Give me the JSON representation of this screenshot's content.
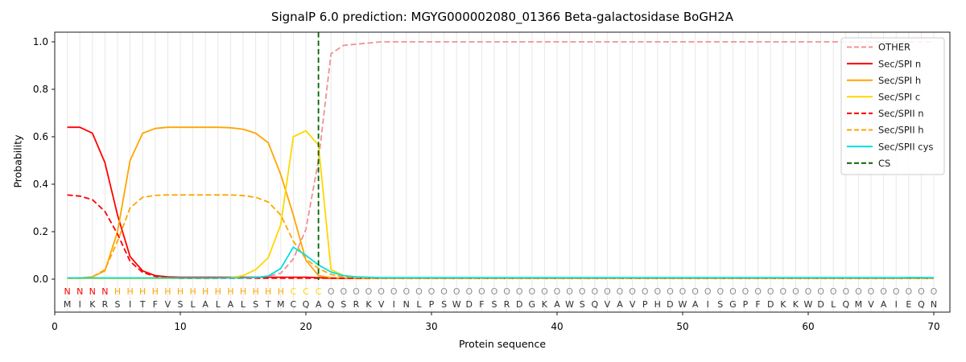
{
  "chart_data": {
    "type": "line",
    "title": "SignalP 6.0 prediction: MGYG000002080_01366 Beta-galactosidase BoGH2A",
    "xlabel": "Protein sequence",
    "ylabel": "Probability",
    "xlim": [
      0,
      71
    ],
    "ylim": [
      -0.14,
      1.04
    ],
    "x_ticks": [
      0,
      10,
      20,
      30,
      40,
      50,
      60,
      70
    ],
    "y_ticks": [
      0.0,
      0.2,
      0.4,
      0.6,
      0.8,
      1.0
    ],
    "y_tick_labels": [
      "0.0",
      "0.2",
      "0.4",
      "0.6",
      "0.8",
      "1.0"
    ],
    "grid": "vertical-per-residue",
    "legend_position": "upper right",
    "cs_position": 21,
    "sequence": [
      "M",
      "I",
      "K",
      "R",
      "S",
      "I",
      "T",
      "F",
      "V",
      "S",
      "L",
      "A",
      "L",
      "A",
      "L",
      "S",
      "T",
      "M",
      "C",
      "Q",
      "A",
      "Q",
      "S",
      "R",
      "K",
      "V",
      "I",
      "N",
      "L",
      "P",
      "S",
      "W",
      "D",
      "F",
      "S",
      "R",
      "D",
      "G",
      "K",
      "A",
      "W",
      "S",
      "Q",
      "V",
      "A",
      "V",
      "P",
      "H",
      "D",
      "W",
      "A",
      "I",
      "S",
      "G",
      "P",
      "F",
      "D",
      "K",
      "K",
      "W",
      "D",
      "L",
      "Q",
      "M",
      "V",
      "A",
      "I",
      "E",
      "Q",
      "N"
    ],
    "region_labels": [
      "N",
      "N",
      "N",
      "N",
      "H",
      "H",
      "H",
      "H",
      "H",
      "H",
      "H",
      "H",
      "H",
      "H",
      "H",
      "H",
      "H",
      "H",
      "C",
      "C",
      "C",
      "O",
      "O",
      "O",
      "O",
      "O",
      "O",
      "O",
      "O",
      "O",
      "O",
      "O",
      "O",
      "O",
      "O",
      "O",
      "O",
      "O",
      "O",
      "O",
      "O",
      "O",
      "O",
      "O",
      "O",
      "O",
      "O",
      "O",
      "O",
      "O",
      "O",
      "O",
      "O",
      "O",
      "O",
      "O",
      "O",
      "O",
      "O",
      "O",
      "O",
      "O",
      "O",
      "O",
      "O",
      "O",
      "O",
      "O",
      "O",
      "O"
    ],
    "region_colors": {
      "N": "#ff0000",
      "H": "#ffa500",
      "C": "#ffd700",
      "O": "#8e8e8e"
    },
    "sequence_color": "#2e2e2e",
    "series": [
      {
        "name": "OTHER",
        "color": "#f29090",
        "dash": "dashed",
        "values": [
          0.005,
          0.005,
          0.005,
          0.005,
          0.005,
          0.005,
          0.005,
          0.005,
          0.005,
          0.005,
          0.005,
          0.005,
          0.005,
          0.005,
          0.006,
          0.008,
          0.012,
          0.025,
          0.085,
          0.21,
          0.5,
          0.95,
          0.985,
          0.99,
          0.995,
          1.0,
          1.0,
          1.0,
          1.0,
          1.0,
          1.0,
          1.0,
          1.0,
          1.0,
          1.0,
          1.0,
          1.0,
          1.0,
          1.0,
          1.0,
          1.0,
          1.0,
          1.0,
          1.0,
          1.0,
          1.0,
          1.0,
          1.0,
          1.0,
          1.0,
          1.0,
          1.0,
          1.0,
          1.0,
          1.0,
          1.0,
          1.0,
          1.0,
          1.0,
          1.0,
          1.0,
          1.0,
          1.0,
          1.0,
          1.0,
          1.0,
          1.0,
          1.0,
          1.0,
          1.0
        ]
      },
      {
        "name": "Sec/SPI n",
        "color": "#ff0000",
        "dash": "solid",
        "values": [
          0.64,
          0.64,
          0.615,
          0.49,
          0.27,
          0.095,
          0.035,
          0.015,
          0.01,
          0.008,
          0.008,
          0.008,
          0.008,
          0.008,
          0.008,
          0.008,
          0.008,
          0.008,
          0.008,
          0.008,
          0.006,
          0.004,
          0.003,
          0.003,
          0.003,
          0.003,
          0.003,
          0.003,
          0.003,
          0.003,
          0.003,
          0.003,
          0.003,
          0.003,
          0.003,
          0.003,
          0.003,
          0.003,
          0.003,
          0.003,
          0.003,
          0.003,
          0.003,
          0.003,
          0.003,
          0.003,
          0.003,
          0.003,
          0.003,
          0.003,
          0.003,
          0.003,
          0.003,
          0.003,
          0.003,
          0.003,
          0.003,
          0.003,
          0.003,
          0.003,
          0.003,
          0.003,
          0.003,
          0.003,
          0.003,
          0.003,
          0.003,
          0.003,
          0.003,
          0.003
        ]
      },
      {
        "name": "Sec/SPI h",
        "color": "#ffa500",
        "dash": "solid",
        "values": [
          0.004,
          0.005,
          0.01,
          0.035,
          0.2,
          0.5,
          0.615,
          0.635,
          0.64,
          0.64,
          0.64,
          0.64,
          0.64,
          0.638,
          0.632,
          0.615,
          0.575,
          0.44,
          0.27,
          0.08,
          0.015,
          0.006,
          0.004,
          0.003,
          0.003,
          0.003,
          0.003,
          0.003,
          0.003,
          0.003,
          0.003,
          0.003,
          0.003,
          0.003,
          0.003,
          0.003,
          0.003,
          0.003,
          0.003,
          0.003,
          0.003,
          0.003,
          0.003,
          0.003,
          0.003,
          0.003,
          0.003,
          0.003,
          0.003,
          0.003,
          0.003,
          0.003,
          0.003,
          0.003,
          0.003,
          0.003,
          0.003,
          0.003,
          0.003,
          0.003,
          0.003,
          0.003,
          0.003,
          0.003,
          0.003,
          0.003,
          0.004,
          0.007,
          0.007,
          0.004
        ]
      },
      {
        "name": "Sec/SPI c",
        "color": "#ffd700",
        "dash": "solid",
        "values": [
          0.003,
          0.003,
          0.003,
          0.003,
          0.003,
          0.003,
          0.003,
          0.003,
          0.003,
          0.003,
          0.003,
          0.003,
          0.004,
          0.006,
          0.015,
          0.04,
          0.09,
          0.23,
          0.6,
          0.625,
          0.565,
          0.04,
          0.015,
          0.008,
          0.005,
          0.003,
          0.003,
          0.003,
          0.003,
          0.003,
          0.003,
          0.003,
          0.003,
          0.003,
          0.003,
          0.003,
          0.003,
          0.003,
          0.003,
          0.003,
          0.003,
          0.003,
          0.003,
          0.003,
          0.003,
          0.003,
          0.003,
          0.003,
          0.003,
          0.003,
          0.003,
          0.003,
          0.003,
          0.003,
          0.003,
          0.003,
          0.003,
          0.003,
          0.003,
          0.003,
          0.003,
          0.003,
          0.003,
          0.003,
          0.003,
          0.003,
          0.003,
          0.003,
          0.003,
          0.003
        ]
      },
      {
        "name": "Sec/SPII n",
        "color": "#ff0000",
        "dash": "dashed",
        "values": [
          0.355,
          0.35,
          0.335,
          0.285,
          0.19,
          0.075,
          0.028,
          0.012,
          0.006,
          0.004,
          0.004,
          0.004,
          0.004,
          0.004,
          0.004,
          0.004,
          0.004,
          0.004,
          0.004,
          0.004,
          0.004,
          0.004,
          0.004,
          0.004,
          0.004,
          0.004,
          0.004,
          0.004,
          0.004,
          0.004,
          0.004,
          0.004,
          0.004,
          0.004,
          0.004,
          0.004,
          0.004,
          0.004,
          0.004,
          0.004,
          0.004,
          0.004,
          0.004,
          0.004,
          0.004,
          0.004,
          0.004,
          0.004,
          0.004,
          0.004,
          0.004,
          0.004,
          0.004,
          0.004,
          0.004,
          0.004,
          0.004,
          0.004,
          0.004,
          0.004,
          0.004,
          0.004,
          0.004,
          0.004,
          0.004,
          0.004,
          0.004,
          0.004,
          0.004,
          0.004
        ]
      },
      {
        "name": "Sec/SPII h",
        "color": "#ffa500",
        "dash": "dashed",
        "values": [
          0.003,
          0.004,
          0.01,
          0.04,
          0.16,
          0.3,
          0.345,
          0.353,
          0.355,
          0.355,
          0.355,
          0.355,
          0.355,
          0.355,
          0.352,
          0.345,
          0.325,
          0.27,
          0.16,
          0.085,
          0.045,
          0.02,
          0.01,
          0.007,
          0.005,
          0.004,
          0.004,
          0.004,
          0.004,
          0.004,
          0.004,
          0.004,
          0.004,
          0.004,
          0.004,
          0.004,
          0.004,
          0.004,
          0.004,
          0.004,
          0.004,
          0.004,
          0.004,
          0.004,
          0.004,
          0.004,
          0.004,
          0.004,
          0.004,
          0.004,
          0.004,
          0.004,
          0.004,
          0.004,
          0.004,
          0.004,
          0.004,
          0.004,
          0.004,
          0.004,
          0.004,
          0.004,
          0.004,
          0.004,
          0.004,
          0.004,
          0.004,
          0.004,
          0.004,
          0.004
        ]
      },
      {
        "name": "Sec/SPII cys",
        "color": "#00e0e0",
        "dash": "solid",
        "values": [
          0.005,
          0.005,
          0.005,
          0.005,
          0.005,
          0.005,
          0.005,
          0.005,
          0.005,
          0.005,
          0.005,
          0.005,
          0.005,
          0.005,
          0.005,
          0.007,
          0.013,
          0.045,
          0.135,
          0.1,
          0.06,
          0.03,
          0.015,
          0.01,
          0.008,
          0.006,
          0.006,
          0.006,
          0.006,
          0.006,
          0.006,
          0.006,
          0.006,
          0.006,
          0.006,
          0.006,
          0.006,
          0.006,
          0.006,
          0.006,
          0.006,
          0.006,
          0.006,
          0.006,
          0.006,
          0.006,
          0.006,
          0.006,
          0.006,
          0.006,
          0.006,
          0.006,
          0.006,
          0.006,
          0.006,
          0.006,
          0.006,
          0.006,
          0.006,
          0.006,
          0.006,
          0.006,
          0.006,
          0.006,
          0.006,
          0.006,
          0.006,
          0.006,
          0.006,
          0.006
        ]
      },
      {
        "name": "CS",
        "color": "#006400",
        "dash": "dashed",
        "type": "vline",
        "x": 21
      }
    ]
  }
}
